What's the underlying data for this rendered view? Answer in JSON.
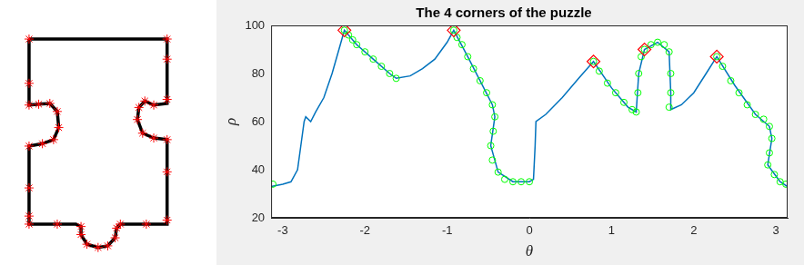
{
  "chart_data": [
    {
      "type": "line",
      "tick_labels": false,
      "grid": false,
      "series": [
        {
          "color": "#000000",
          "line_style": "solid",
          "marker": "none",
          "x": [
            22,
            208,
            208,
            190,
            178,
            170,
            168,
            175,
            190,
            208,
            208,
            145,
            140,
            138,
            128,
            115,
            100,
            92,
            92,
            85,
            22,
            22,
            40,
            55,
            62,
            60,
            50,
            35,
            22,
            22
          ],
          "values": [
            265,
            265,
            185,
            183,
            188,
            180,
            165,
            148,
            142,
            140,
            35,
            35,
            30,
            18,
            8,
            6,
            10,
            22,
            32,
            35,
            35,
            132,
            135,
            140,
            155,
            175,
            185,
            184,
            183,
            265
          ]
        },
        {
          "color": "#ff0000",
          "line_style": "none",
          "marker": "star",
          "x": [
            22,
            208,
            208,
            208,
            190,
            178,
            170,
            168,
            175,
            190,
            208,
            208,
            208,
            180,
            145,
            140,
            138,
            128,
            115,
            100,
            92,
            92,
            60,
            22,
            22,
            22,
            22,
            40,
            55,
            62,
            60,
            50,
            35,
            22,
            22
          ],
          "values": [
            265,
            265,
            240,
            190,
            183,
            188,
            180,
            165,
            148,
            142,
            140,
            100,
            40,
            35,
            35,
            30,
            18,
            8,
            6,
            10,
            22,
            32,
            35,
            35,
            45,
            80,
            132,
            135,
            140,
            155,
            175,
            185,
            184,
            183,
            210
          ]
        }
      ]
    },
    {
      "type": "line",
      "title": "The 4 corners of the puzzle",
      "x_label": "θ",
      "y_label": "ρ",
      "xlim": [
        -3.1416,
        3.1416
      ],
      "ylim": [
        20,
        100
      ],
      "xticks": [
        -3,
        -2,
        -1,
        0,
        1,
        2,
        3
      ],
      "yticks": [
        20,
        40,
        60,
        80,
        100
      ],
      "grid": false,
      "series": [
        {
          "color": "#0072bd",
          "line_style": "solid",
          "marker": "none",
          "x": [
            -3.14,
            -3.0,
            -2.9,
            -2.82,
            -2.78,
            -2.74,
            -2.72,
            -2.66,
            -2.6,
            -2.5,
            -2.4,
            -2.3,
            -2.25,
            -2.1,
            -1.9,
            -1.7,
            -1.62,
            -1.45,
            -1.3,
            -1.15,
            -1.0,
            -0.92,
            -0.75,
            -0.6,
            -0.45,
            -0.42,
            -0.47,
            -0.38,
            -0.2,
            0.0,
            0.05,
            0.07,
            0.08,
            0.2,
            0.4,
            0.6,
            0.78,
            1.0,
            1.2,
            1.3,
            1.33,
            1.4,
            1.56,
            1.7,
            1.72,
            1.72,
            1.85,
            2.0,
            2.15,
            2.28,
            2.5,
            2.75,
            2.92,
            2.95,
            2.9,
            3.05,
            3.14
          ],
          "values": [
            33,
            34,
            35,
            40,
            50,
            60,
            62,
            60,
            64,
            70,
            80,
            92,
            98,
            92,
            86,
            80,
            78,
            79,
            82,
            86,
            93,
            98,
            87,
            77,
            67,
            62,
            50,
            39,
            35,
            35,
            36,
            50,
            60,
            63,
            70,
            78,
            85,
            74,
            66,
            64,
            80,
            90,
            93,
            89,
            72,
            65,
            67,
            72,
            80,
            87,
            75,
            63,
            58,
            53,
            42,
            35,
            33
          ]
        },
        {
          "color": "#00ff00",
          "line_style": "none",
          "marker": "circle",
          "x": [
            -3.12,
            -2.25,
            -2.2,
            -2.15,
            -2.1,
            -2.0,
            -1.9,
            -1.8,
            -1.7,
            -1.62,
            -0.92,
            -0.88,
            -0.82,
            -0.75,
            -0.68,
            -0.6,
            -0.52,
            -0.45,
            -0.42,
            -0.44,
            -0.47,
            -0.45,
            -0.38,
            -0.3,
            -0.2,
            -0.1,
            0.0,
            0.78,
            0.85,
            0.95,
            1.05,
            1.15,
            1.25,
            1.3,
            1.32,
            1.33,
            1.36,
            1.4,
            1.48,
            1.56,
            1.64,
            1.7,
            1.72,
            1.72,
            1.7,
            2.28,
            2.35,
            2.45,
            2.55,
            2.65,
            2.75,
            2.85,
            2.92,
            2.95,
            2.92,
            2.9,
            2.98,
            3.05,
            3.12
          ],
          "values": [
            34,
            98,
            96,
            94,
            92,
            89,
            86,
            83,
            80,
            78,
            98,
            95,
            92,
            87,
            82,
            77,
            72,
            67,
            62,
            56,
            50,
            44,
            39,
            36,
            35,
            35,
            35,
            85,
            81,
            76,
            72,
            68,
            65,
            64,
            72,
            80,
            87,
            90,
            92,
            93,
            92,
            89,
            80,
            72,
            66,
            87,
            83,
            77,
            72,
            67,
            63,
            61,
            58,
            53,
            47,
            42,
            38,
            35,
            34
          ]
        },
        {
          "color": "#ff0000",
          "line_style": "none",
          "marker": "diamond",
          "x": [
            -2.25,
            -0.92,
            0.78,
            1.4,
            2.28
          ],
          "values": [
            98,
            98,
            85,
            90,
            87
          ]
        }
      ]
    }
  ]
}
